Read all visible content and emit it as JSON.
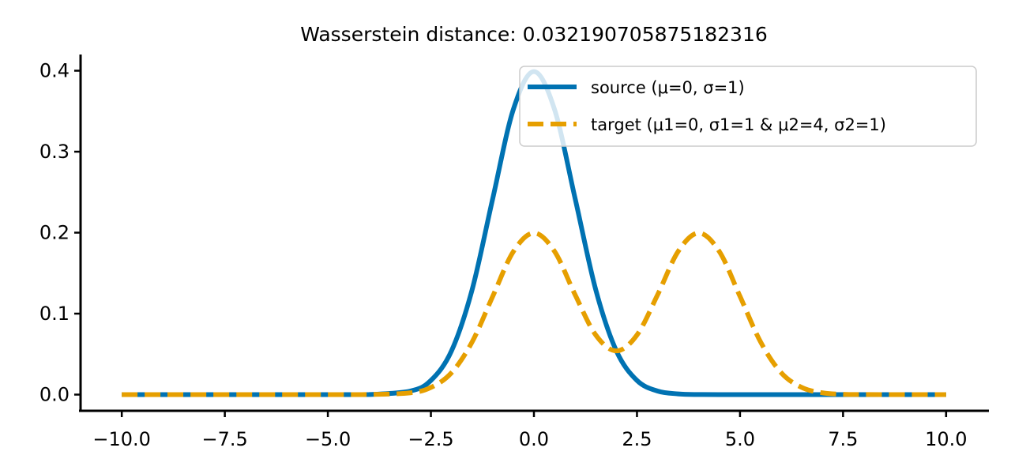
{
  "chart_data": {
    "type": "line",
    "title": "Wasserstein distance: 0.032190705875182316",
    "xlabel": "",
    "ylabel": "",
    "xlim": [
      -11,
      11
    ],
    "ylim": [
      -0.02,
      0.42
    ],
    "x_ticks": [
      -10.0,
      -7.5,
      -5.0,
      -2.5,
      0.0,
      2.5,
      5.0,
      7.5,
      10.0
    ],
    "x_tick_labels": [
      "−10.0",
      "−7.5",
      "−5.0",
      "−2.5",
      "0.0",
      "2.5",
      "5.0",
      "7.5",
      "10.0"
    ],
    "y_ticks": [
      0.0,
      0.1,
      0.2,
      0.3,
      0.4
    ],
    "y_tick_labels": [
      "0.0",
      "0.1",
      "0.2",
      "0.3",
      "0.4"
    ],
    "grid": false,
    "legend_position": "top-right",
    "x": [
      -10,
      -5,
      -4,
      -3,
      -2.5,
      -2,
      -1.5,
      -1,
      -0.5,
      0,
      0.5,
      1,
      1.5,
      2,
      2.5,
      3,
      3.5,
      4,
      4.5,
      5,
      5.5,
      6,
      6.5,
      7,
      7.5,
      8,
      9,
      10
    ],
    "series": [
      {
        "name": "source (μ=0, σ=1)",
        "style": "solid",
        "color": "#0072B2",
        "values": [
          0.0,
          0.0,
          0.0001,
          0.0044,
          0.0175,
          0.054,
          0.1295,
          0.242,
          0.3521,
          0.3989,
          0.3521,
          0.242,
          0.1295,
          0.054,
          0.0175,
          0.0044,
          0.0009,
          0.0001,
          0.0,
          0.0,
          0.0,
          0.0,
          0.0,
          0.0,
          0.0,
          0.0,
          0.0,
          0.0
        ]
      },
      {
        "name": "target (μ1=0, σ1=1 & μ2=4, σ2=1)",
        "style": "dashed",
        "color": "#E69F00",
        "values": [
          0.0,
          0.0,
          0.0001,
          0.0022,
          0.0088,
          0.027,
          0.065,
          0.1213,
          0.1766,
          0.1995,
          0.1769,
          0.1232,
          0.0736,
          0.054,
          0.0736,
          0.1232,
          0.1769,
          0.1995,
          0.1766,
          0.1213,
          0.065,
          0.027,
          0.0088,
          0.0022,
          0.0004,
          0.0001,
          0.0,
          0.0
        ]
      }
    ]
  },
  "legend": {
    "source_label": "source (μ=0, σ=1)",
    "target_label": "target (μ1=0, σ1=1 & μ2=4, σ2=1)"
  }
}
